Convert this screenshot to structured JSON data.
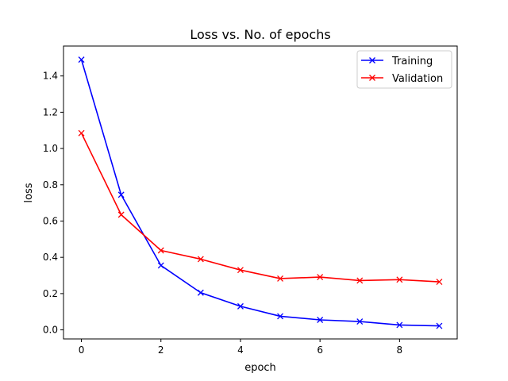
{
  "chart_data": {
    "type": "line",
    "title": "Loss vs. No. of epochs",
    "xlabel": "epoch",
    "ylabel": "loss",
    "xlim": [
      -0.45,
      9.45
    ],
    "ylim": [
      -0.05,
      1.565
    ],
    "xticks": [
      0,
      2,
      4,
      6,
      8
    ],
    "yticks": [
      0.0,
      0.2,
      0.4,
      0.6,
      0.8,
      1.0,
      1.2,
      1.4
    ],
    "grid": false,
    "legend_position": "top-right",
    "x": [
      0,
      1,
      2,
      3,
      4,
      5,
      6,
      7,
      8,
      9
    ],
    "series": [
      {
        "name": "Training",
        "color": "#0000ff",
        "marker": "x",
        "values": [
          1.49,
          0.745,
          0.355,
          0.205,
          0.13,
          0.075,
          0.055,
          0.046,
          0.027,
          0.022
        ]
      },
      {
        "name": "Validation",
        "color": "#ff0000",
        "marker": "x",
        "values": [
          1.085,
          0.635,
          0.438,
          0.39,
          0.33,
          0.283,
          0.291,
          0.272,
          0.277,
          0.265
        ]
      }
    ]
  }
}
